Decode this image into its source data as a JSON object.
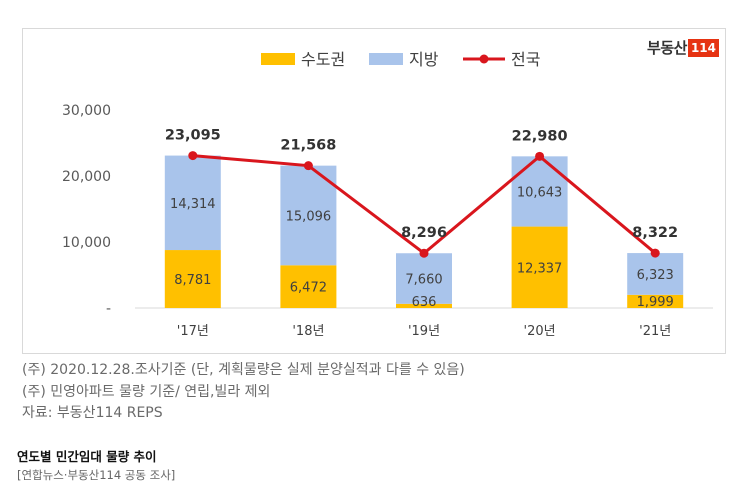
{
  "brand": {
    "word": "부동산",
    "number": "114"
  },
  "notes": [
    "(주) 2020.12.28.조사기준 (단, 계획물량은 실제 분양실적과 다를 수 있음)",
    "(주) 민영아파트 물량 기준/ 연립,빌라 제외",
    "자료: 부동산114 REPS"
  ],
  "caption": "연도별 민간임대 물량 추이",
  "credit": "[연합뉴스·부동산114 공동 조사]",
  "chart_data": {
    "type": "bar",
    "stacked": true,
    "categories": [
      "'17년",
      "'18년",
      "'19년",
      "'20년",
      "'21년"
    ],
    "series": [
      {
        "name": "수도권",
        "kind": "bar",
        "color": "#ffc000",
        "values": [
          8781,
          6472,
          636,
          12337,
          1999
        ]
      },
      {
        "name": "지방",
        "kind": "bar",
        "color": "#a9c4eb",
        "values": [
          14314,
          15096,
          7660,
          10643,
          6323
        ]
      },
      {
        "name": "전국",
        "kind": "line",
        "color": "#d9161d",
        "values": [
          23095,
          21568,
          8296,
          22980,
          8322
        ]
      }
    ],
    "data_labels": {
      "수도권": [
        "8,781",
        "6,472",
        "636",
        "12,337",
        "1,999"
      ],
      "지방": [
        "14,314",
        "15,096",
        "7,660",
        "10,643",
        "6,323"
      ],
      "전국": [
        "23,095",
        "21,568",
        "8,296",
        "22,980",
        "8,322"
      ]
    },
    "y_ticks": [
      0,
      10000,
      20000,
      30000
    ],
    "y_tick_labels": [
      "-",
      "10,000",
      "20,000",
      "30,000"
    ],
    "ylim": [
      0,
      30000
    ],
    "legend_position": "top",
    "grid": false
  }
}
